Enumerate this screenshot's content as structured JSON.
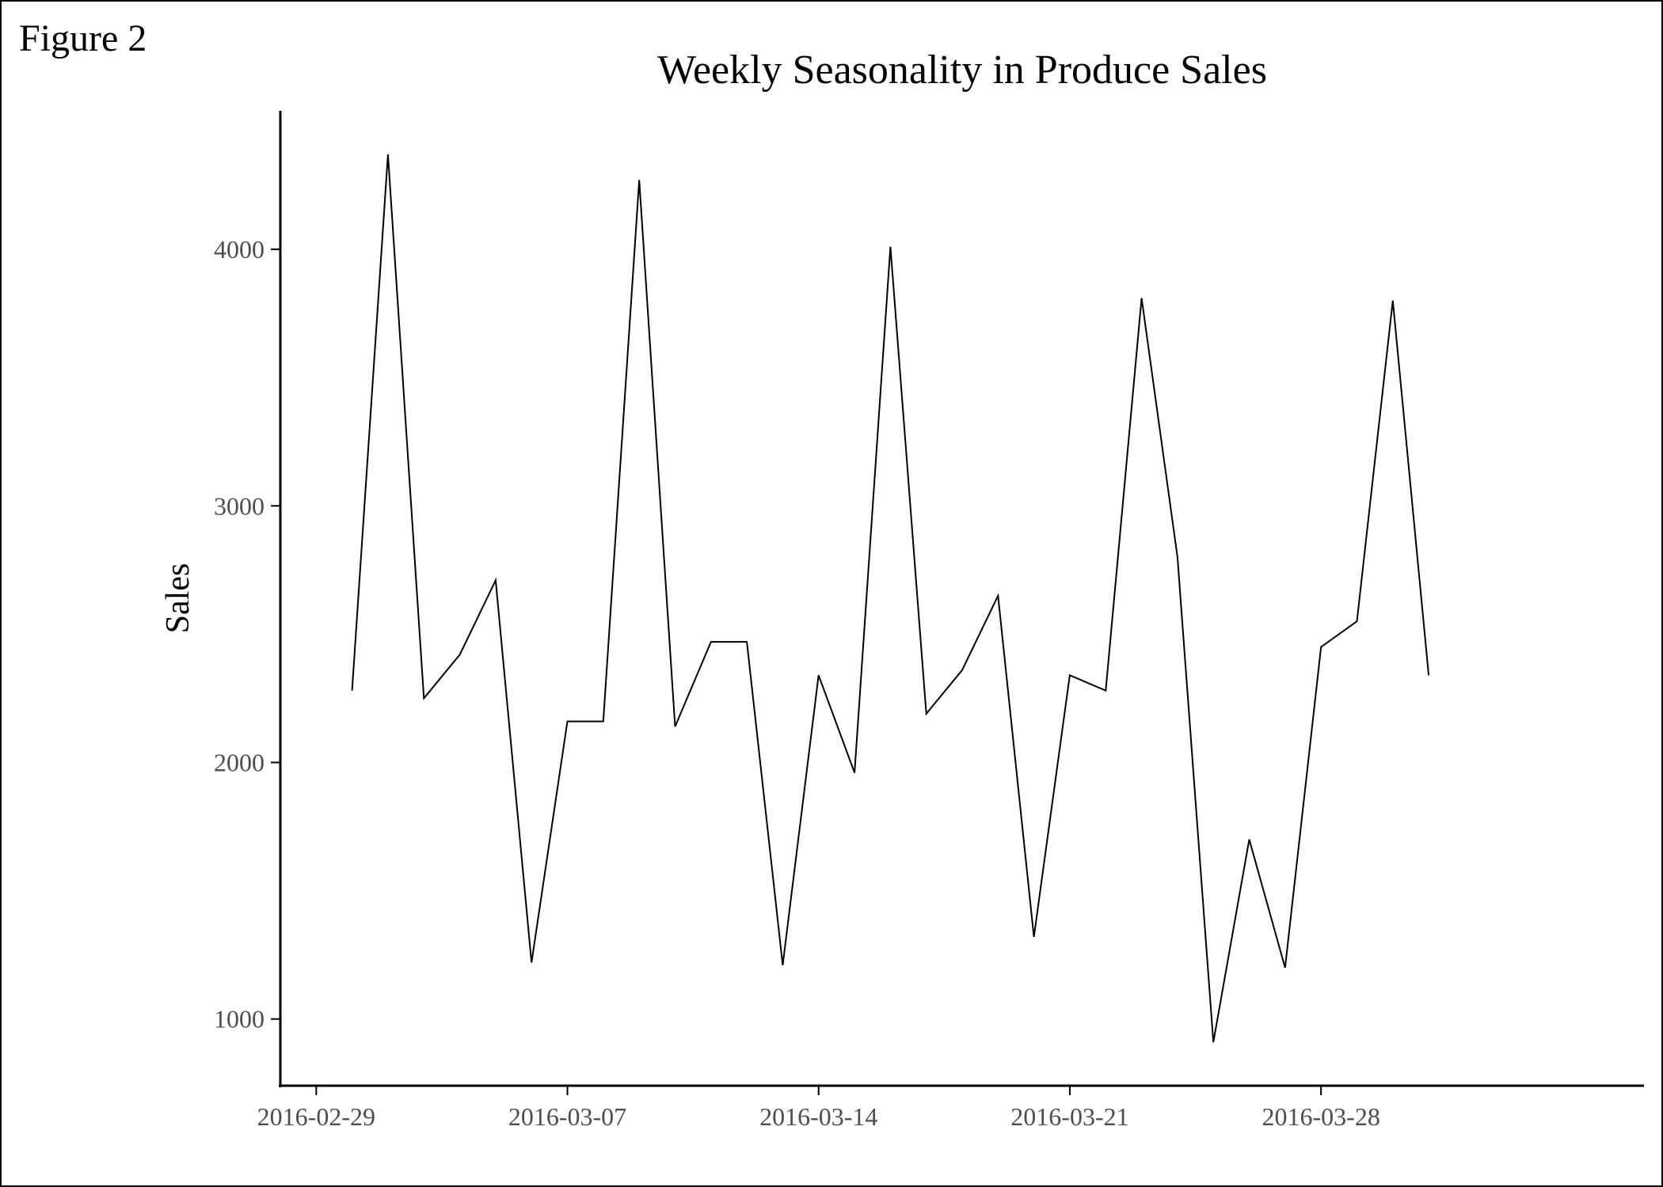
{
  "figure_label": "Figure 2",
  "chart_data": {
    "type": "line",
    "title": "Weekly Seasonality in Produce Sales",
    "xlabel": "",
    "ylabel": "Sales",
    "x_ticks": [
      "2016-02-29",
      "2016-03-07",
      "2016-03-14",
      "2016-03-21",
      "2016-03-28"
    ],
    "y_ticks": [
      1000,
      2000,
      3000,
      4000
    ],
    "xlim": [
      "2016-02-28",
      "2016-04-06"
    ],
    "ylim": [
      740,
      4540
    ],
    "grid": false,
    "legend": "none",
    "line_color": "#000000",
    "series": [
      {
        "x": [
          "2016-03-01",
          "2016-03-02",
          "2016-03-03",
          "2016-03-04",
          "2016-03-05",
          "2016-03-06",
          "2016-03-07",
          "2016-03-08",
          "2016-03-09",
          "2016-03-10",
          "2016-03-11",
          "2016-03-12",
          "2016-03-13",
          "2016-03-14",
          "2016-03-15",
          "2016-03-16",
          "2016-03-17",
          "2016-03-18",
          "2016-03-19",
          "2016-03-20",
          "2016-03-21",
          "2016-03-22",
          "2016-03-23",
          "2016-03-24",
          "2016-03-25",
          "2016-03-26",
          "2016-03-27",
          "2016-03-28",
          "2016-03-29",
          "2016-03-30",
          "2016-03-31"
        ],
        "values": [
          2280,
          4370,
          2250,
          2420,
          2710,
          1220,
          2160,
          2160,
          4270,
          2140,
          2470,
          2470,
          1210,
          2340,
          1960,
          4010,
          2190,
          2360,
          2650,
          1320,
          2340,
          2280,
          3810,
          2800,
          910,
          1700,
          1200,
          2450,
          2550,
          3800,
          2340
        ]
      }
    ]
  }
}
